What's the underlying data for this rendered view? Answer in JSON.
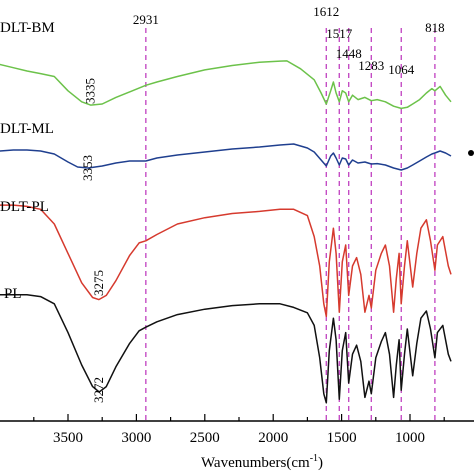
{
  "chart_data": {
    "type": "line",
    "title": "",
    "xlabel": "Wavenumbers(cm",
    "xlabel_sup": "-1",
    "xlabel_close": ")",
    "ylabel": "",
    "x_reversed": true,
    "xlim": [
      4000,
      700
    ],
    "x_ticks": [
      3500,
      3000,
      2500,
      2000,
      1500,
      1000
    ],
    "x_tick_labels": [
      "3500",
      "3000",
      "2500",
      "2000",
      "1500",
      "1000"
    ],
    "legend_placement": "left (series labels written on curves)",
    "grid": false,
    "reference_lines": {
      "color": "#c040c0",
      "positions": [
        2931,
        1612,
        1517,
        1448,
        1283,
        1064,
        818
      ]
    },
    "peak_labels": [
      {
        "text": "2931",
        "x": 2931,
        "orientation": "horizontal"
      },
      {
        "text": "1612",
        "x": 1612,
        "orientation": "horizontal"
      },
      {
        "text": "1517",
        "x": 1517,
        "orientation": "horizontal"
      },
      {
        "text": "1448",
        "x": 1448,
        "orientation": "horizontal"
      },
      {
        "text": "1283",
        "x": 1283,
        "orientation": "horizontal"
      },
      {
        "text": "1064",
        "x": 1064,
        "orientation": "horizontal"
      },
      {
        "text": "818",
        "x": 818,
        "orientation": "horizontal"
      },
      {
        "text": "3335",
        "x": 3335,
        "orientation": "vertical",
        "series": "DLT-BM"
      },
      {
        "text": "3353",
        "x": 3353,
        "orientation": "vertical",
        "series": "DLT-ML"
      },
      {
        "text": "3275",
        "x": 3275,
        "orientation": "vertical",
        "series": "DLT-PL"
      },
      {
        "text": "3272",
        "x": 3272,
        "orientation": "vertical",
        "series": "PL"
      }
    ],
    "series": [
      {
        "name": "DLT-BM",
        "color": "#6cc24a",
        "points": [
          [
            4000,
            0.2
          ],
          [
            3900,
            0.35
          ],
          [
            3800,
            0.5
          ],
          [
            3700,
            0.62
          ],
          [
            3600,
            0.75
          ],
          [
            3500,
            1.4
          ],
          [
            3400,
            1.9
          ],
          [
            3335,
            2.05
          ],
          [
            3250,
            2.0
          ],
          [
            3150,
            1.7
          ],
          [
            3050,
            1.45
          ],
          [
            2931,
            1.15
          ],
          [
            2850,
            1.0
          ],
          [
            2700,
            0.75
          ],
          [
            2500,
            0.45
          ],
          [
            2300,
            0.25
          ],
          [
            2100,
            0.1
          ],
          [
            1950,
            0.05
          ],
          [
            1900,
            0.04
          ],
          [
            1800,
            0.4
          ],
          [
            1700,
            0.9
          ],
          [
            1650,
            1.5
          ],
          [
            1612,
            2.0
          ],
          [
            1580,
            1.4
          ],
          [
            1560,
            1.0
          ],
          [
            1540,
            1.5
          ],
          [
            1517,
            1.9
          ],
          [
            1495,
            1.4
          ],
          [
            1470,
            1.5
          ],
          [
            1448,
            1.9
          ],
          [
            1420,
            1.6
          ],
          [
            1380,
            1.8
          ],
          [
            1330,
            1.7
          ],
          [
            1283,
            1.85
          ],
          [
            1240,
            1.8
          ],
          [
            1180,
            1.9
          ],
          [
            1120,
            2.1
          ],
          [
            1064,
            2.2
          ],
          [
            1020,
            2.15
          ],
          [
            980,
            2.0
          ],
          [
            930,
            1.8
          ],
          [
            880,
            1.5
          ],
          [
            840,
            1.3
          ],
          [
            818,
            1.4
          ],
          [
            780,
            1.2
          ],
          [
            740,
            1.6
          ],
          [
            700,
            1.9
          ]
        ]
      },
      {
        "name": "DLT-ML",
        "color": "#1f3f8f",
        "points": [
          [
            4000,
            0.25
          ],
          [
            3900,
            0.2
          ],
          [
            3800,
            0.2
          ],
          [
            3700,
            0.25
          ],
          [
            3600,
            0.4
          ],
          [
            3500,
            0.8
          ],
          [
            3430,
            1.05
          ],
          [
            3353,
            1.1
          ],
          [
            3250,
            1.0
          ],
          [
            3150,
            0.85
          ],
          [
            3050,
            0.75
          ],
          [
            2931,
            0.75
          ],
          [
            2850,
            0.6
          ],
          [
            2700,
            0.45
          ],
          [
            2500,
            0.3
          ],
          [
            2300,
            0.15
          ],
          [
            2100,
            0.05
          ],
          [
            1950,
            -0.05
          ],
          [
            1850,
            -0.1
          ],
          [
            1750,
            0.1
          ],
          [
            1700,
            0.3
          ],
          [
            1650,
            0.7
          ],
          [
            1612,
            1.0
          ],
          [
            1580,
            0.5
          ],
          [
            1560,
            0.35
          ],
          [
            1540,
            0.6
          ],
          [
            1517,
            0.95
          ],
          [
            1495,
            0.6
          ],
          [
            1470,
            0.65
          ],
          [
            1448,
            0.95
          ],
          [
            1420,
            0.7
          ],
          [
            1380,
            0.85
          ],
          [
            1330,
            0.8
          ],
          [
            1283,
            0.9
          ],
          [
            1240,
            0.88
          ],
          [
            1180,
            0.95
          ],
          [
            1120,
            1.1
          ],
          [
            1064,
            1.2
          ],
          [
            1020,
            1.1
          ],
          [
            980,
            0.95
          ],
          [
            930,
            0.75
          ],
          [
            880,
            0.55
          ],
          [
            840,
            0.4
          ],
          [
            818,
            0.35
          ],
          [
            780,
            0.25
          ],
          [
            740,
            0.35
          ],
          [
            700,
            0.5
          ]
        ]
      },
      {
        "name": "DLT-PL",
        "color": "#d63a2e",
        "points": [
          [
            4000,
            0.05
          ],
          [
            3900,
            0.05
          ],
          [
            3800,
            0.08
          ],
          [
            3700,
            0.15
          ],
          [
            3600,
            0.5
          ],
          [
            3500,
            1.2
          ],
          [
            3400,
            1.9
          ],
          [
            3320,
            2.25
          ],
          [
            3275,
            2.3
          ],
          [
            3220,
            2.2
          ],
          [
            3150,
            1.85
          ],
          [
            3050,
            1.25
          ],
          [
            2980,
            0.95
          ],
          [
            2931,
            0.9
          ],
          [
            2850,
            0.75
          ],
          [
            2700,
            0.5
          ],
          [
            2500,
            0.35
          ],
          [
            2300,
            0.25
          ],
          [
            2100,
            0.2
          ],
          [
            1950,
            0.15
          ],
          [
            1850,
            0.15
          ],
          [
            1750,
            0.3
          ],
          [
            1700,
            0.8
          ],
          [
            1660,
            1.5
          ],
          [
            1630,
            2.4
          ],
          [
            1612,
            2.7
          ],
          [
            1590,
            1.4
          ],
          [
            1560,
            0.6
          ],
          [
            1540,
            1.2
          ],
          [
            1517,
            2.6
          ],
          [
            1495,
            1.4
          ],
          [
            1470,
            1.0
          ],
          [
            1448,
            2.2
          ],
          [
            1420,
            1.5
          ],
          [
            1390,
            1.3
          ],
          [
            1360,
            1.7
          ],
          [
            1330,
            2.6
          ],
          [
            1300,
            2.2
          ],
          [
            1283,
            2.5
          ],
          [
            1250,
            1.6
          ],
          [
            1210,
            1.2
          ],
          [
            1180,
            1.0
          ],
          [
            1150,
            1.5
          ],
          [
            1120,
            2.6
          ],
          [
            1100,
            1.8
          ],
          [
            1080,
            1.2
          ],
          [
            1064,
            2.4
          ],
          [
            1040,
            1.5
          ],
          [
            1020,
            0.9
          ],
          [
            980,
            2.0
          ],
          [
            950,
            1.2
          ],
          [
            920,
            0.6
          ],
          [
            880,
            0.4
          ],
          [
            850,
            0.9
          ],
          [
            818,
            1.6
          ],
          [
            800,
            1.0
          ],
          [
            760,
            0.8
          ],
          [
            720,
            1.5
          ],
          [
            700,
            1.7
          ]
        ]
      },
      {
        "name": "PL",
        "color": "#111111",
        "points": [
          [
            4000,
            0.05
          ],
          [
            3900,
            0.05
          ],
          [
            3800,
            0.05
          ],
          [
            3700,
            0.1
          ],
          [
            3600,
            0.3
          ],
          [
            3500,
            1.1
          ],
          [
            3400,
            2.0
          ],
          [
            3320,
            2.6
          ],
          [
            3272,
            2.75
          ],
          [
            3220,
            2.6
          ],
          [
            3150,
            2.05
          ],
          [
            3050,
            1.4
          ],
          [
            2980,
            1.05
          ],
          [
            2931,
            0.95
          ],
          [
            2850,
            0.8
          ],
          [
            2700,
            0.6
          ],
          [
            2500,
            0.45
          ],
          [
            2300,
            0.35
          ],
          [
            2100,
            0.3
          ],
          [
            1950,
            0.3
          ],
          [
            1850,
            0.4
          ],
          [
            1750,
            0.55
          ],
          [
            1700,
            0.9
          ],
          [
            1660,
            1.8
          ],
          [
            1630,
            2.8
          ],
          [
            1612,
            3.05
          ],
          [
            1590,
            1.6
          ],
          [
            1560,
            0.7
          ],
          [
            1540,
            1.3
          ],
          [
            1517,
            2.95
          ],
          [
            1495,
            1.6
          ],
          [
            1470,
            1.1
          ],
          [
            1448,
            2.5
          ],
          [
            1420,
            1.7
          ],
          [
            1390,
            1.45
          ],
          [
            1360,
            1.9
          ],
          [
            1330,
            2.9
          ],
          [
            1300,
            2.45
          ],
          [
            1283,
            2.8
          ],
          [
            1250,
            1.8
          ],
          [
            1210,
            1.35
          ],
          [
            1180,
            1.1
          ],
          [
            1150,
            1.7
          ],
          [
            1120,
            2.9
          ],
          [
            1100,
            2.0
          ],
          [
            1080,
            1.3
          ],
          [
            1064,
            2.7
          ],
          [
            1040,
            1.7
          ],
          [
            1020,
            1.0
          ],
          [
            980,
            2.3
          ],
          [
            950,
            1.4
          ],
          [
            920,
            0.7
          ],
          [
            880,
            0.5
          ],
          [
            850,
            1.0
          ],
          [
            818,
            1.8
          ],
          [
            800,
            1.1
          ],
          [
            760,
            0.9
          ],
          [
            720,
            1.7
          ],
          [
            700,
            1.9
          ]
        ]
      }
    ]
  }
}
